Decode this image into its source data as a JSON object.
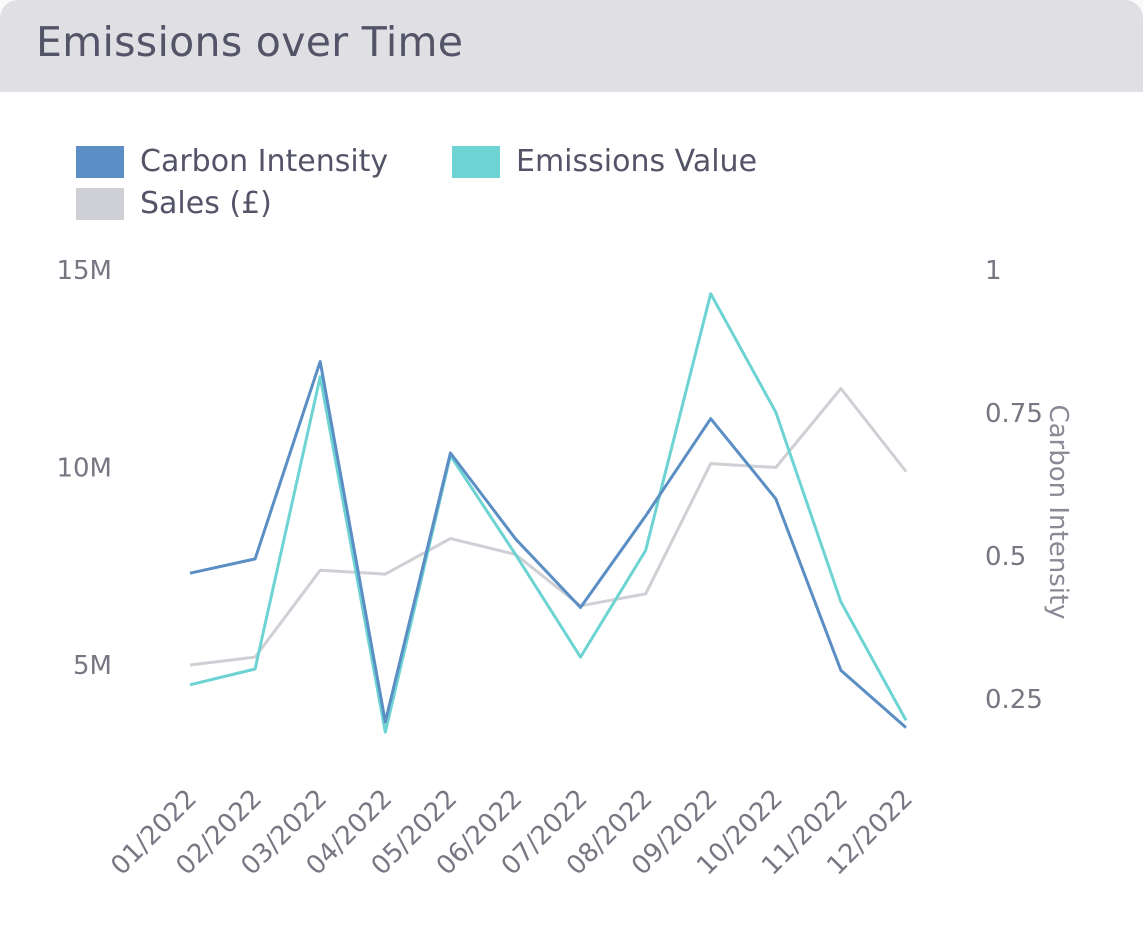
{
  "header": {
    "title": "Emissions over Time"
  },
  "colors": {
    "carbon": "#5b8ec4",
    "emissions": "#6dd3d3",
    "sales": "#cfcfd6",
    "header_bg": "#e0dfe3"
  },
  "legend": [
    {
      "label": "Carbon Intensity",
      "color": "#5b8ec4"
    },
    {
      "label": "Emissions Value",
      "color": "#6dd3d3"
    },
    {
      "label": "Sales (£)",
      "color": "#cfcfd6"
    }
  ],
  "chart_data": {
    "type": "line",
    "categories": [
      "01/2022",
      "02/2022",
      "03/2022",
      "04/2022",
      "05/2022",
      "06/2022",
      "07/2022",
      "08/2022",
      "09/2022",
      "10/2022",
      "11/2022",
      "12/2022"
    ],
    "y_left": {
      "ticks": [
        "15M",
        "10M",
        "5M"
      ],
      "tick_values": [
        15000000,
        10000000,
        5000000
      ],
      "range": [
        0,
        15000000
      ]
    },
    "y_right": {
      "title": "Carbon Intensity",
      "ticks": [
        "1",
        "0.75",
        "0.5",
        "0.25"
      ],
      "tick_values": [
        1,
        0.75,
        0.5,
        0.25
      ],
      "range": [
        0.1,
        1
      ]
    },
    "series": [
      {
        "name": "Carbon Intensity",
        "axis": "right",
        "color": "#5b8ec4",
        "values": [
          0.47,
          0.495,
          0.84,
          0.21,
          0.68,
          0.53,
          0.41,
          0.57,
          0.74,
          0.6,
          0.3,
          0.2
        ]
      },
      {
        "name": "Emissions Value",
        "axis": "left",
        "color": "#6dd3d3",
        "values": [
          4500000.0,
          4900000.0,
          12300000.0,
          3300000.0,
          10300000.0,
          7800000.0,
          5200000.0,
          7900000.0,
          14400000.0,
          11400000.0,
          6600000.0,
          3600000.0
        ]
      },
      {
        "name": "Sales (£)",
        "axis": "left",
        "color": "#cfcfd6",
        "values": [
          5000000.0,
          5200000.0,
          7400000.0,
          7300000.0,
          8200000.0,
          7800000.0,
          6500000.0,
          6800000.0,
          10100000.0,
          10000000.0,
          12000000.0,
          9900000.0
        ]
      }
    ]
  }
}
